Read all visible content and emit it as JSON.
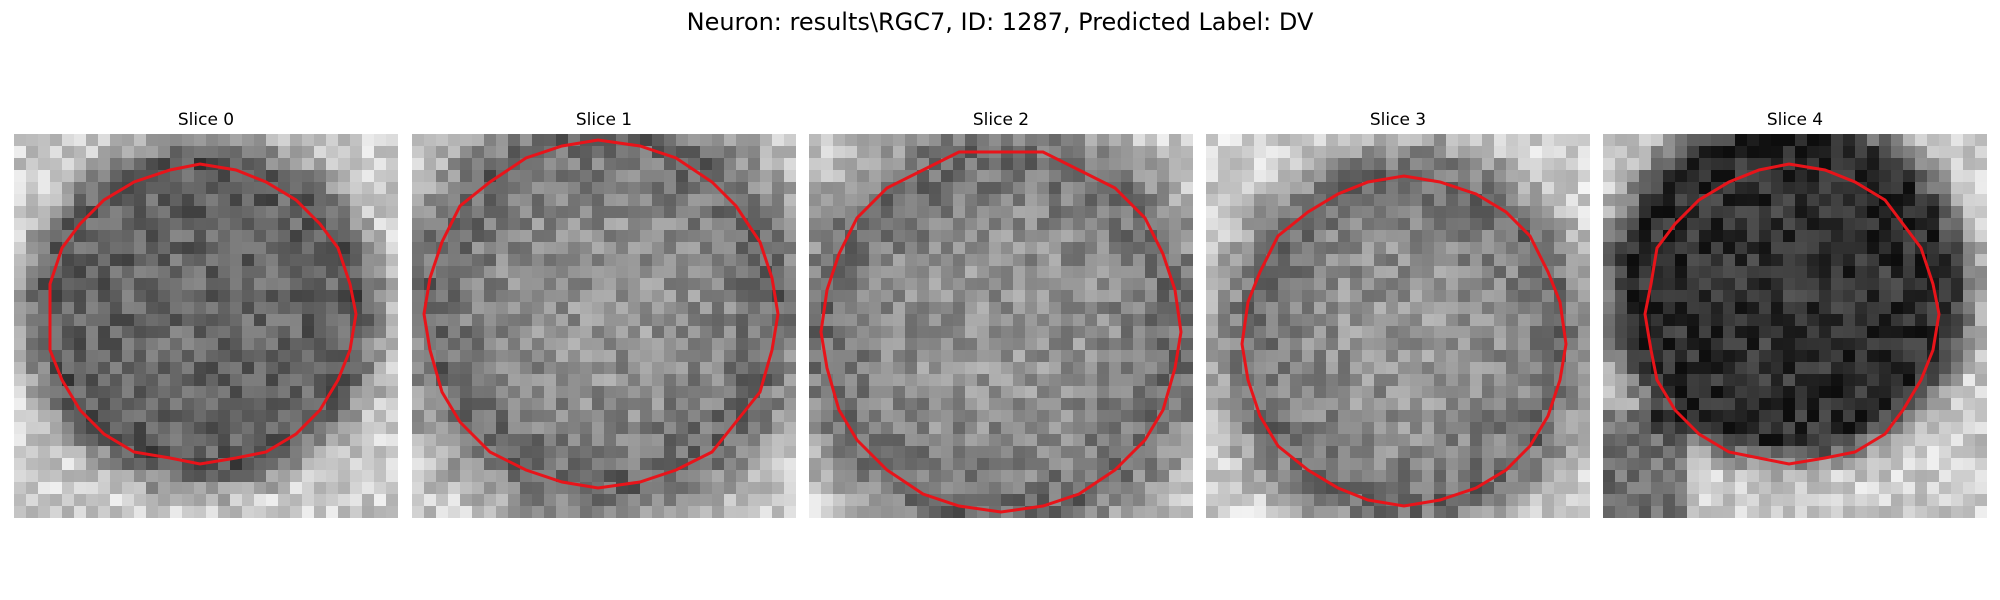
{
  "figure": {
    "suptitle": "Neuron: results\\RGC7, ID: 1287, Predicted Label: DV",
    "contour_color": "#e8141a",
    "panels": [
      {
        "title": "Slice 0",
        "seed": 11,
        "contrast": "dark-cell"
      },
      {
        "title": "Slice 1",
        "seed": 23,
        "contrast": "bright-interior"
      },
      {
        "title": "Slice 2",
        "seed": 37,
        "contrast": "bright-interior"
      },
      {
        "title": "Slice 3",
        "seed": 41,
        "contrast": "bright-interior"
      },
      {
        "title": "Slice 4",
        "seed": 53,
        "contrast": "dark-cell"
      }
    ]
  }
}
